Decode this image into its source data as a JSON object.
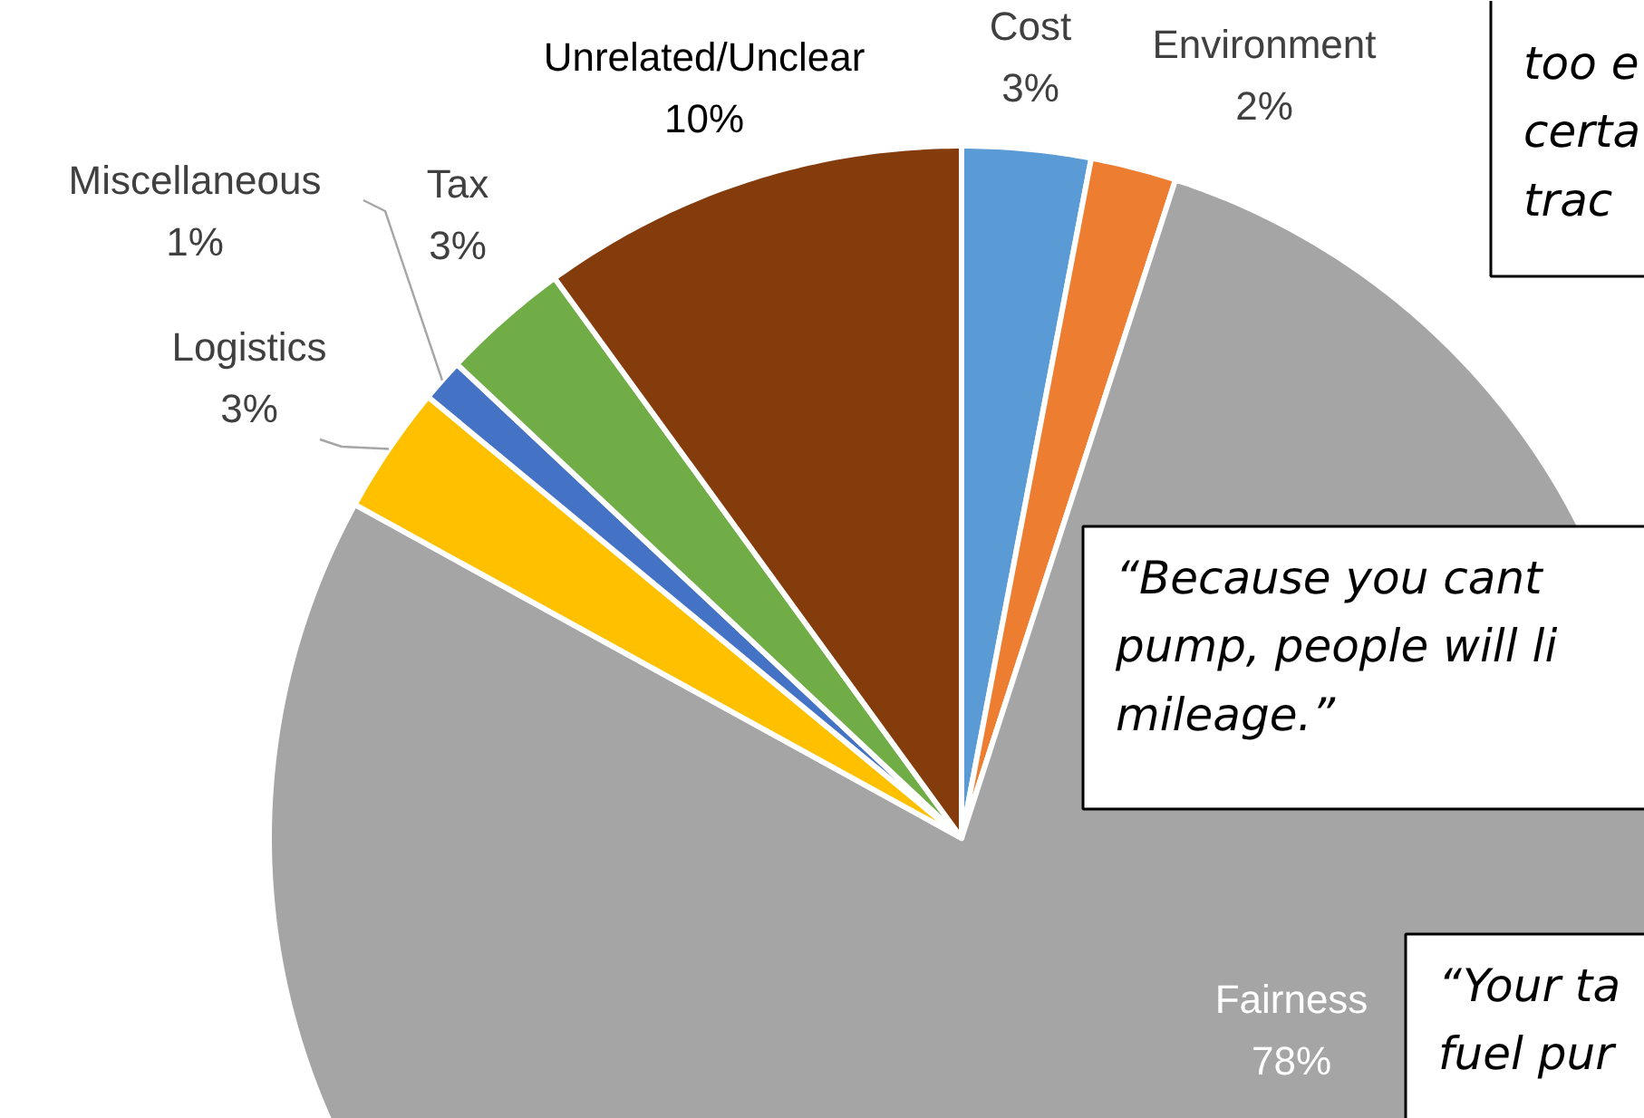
{
  "chart_data": {
    "type": "pie",
    "categories": [
      "Cost",
      "Environment",
      "Fairness",
      "Logistics",
      "Miscellaneous",
      "Tax",
      "Unrelated/Unclear"
    ],
    "values": [
      3,
      2,
      78,
      3,
      1,
      3,
      10
    ],
    "value_labels": [
      "3%",
      "2%",
      "78%",
      "3%",
      "1%",
      "3%",
      "10%"
    ],
    "colors": [
      "#5b9bd5",
      "#ed7d31",
      "#a5a5a5",
      "#ffc000",
      "#4472c4",
      "#70ad47",
      "#843c0c"
    ],
    "annotations": [
      "too e\ncerta\ntrac",
      "“Because you cant\npump, people will li\nmileage.”",
      "“Your ta\nfuel pur"
    ]
  }
}
